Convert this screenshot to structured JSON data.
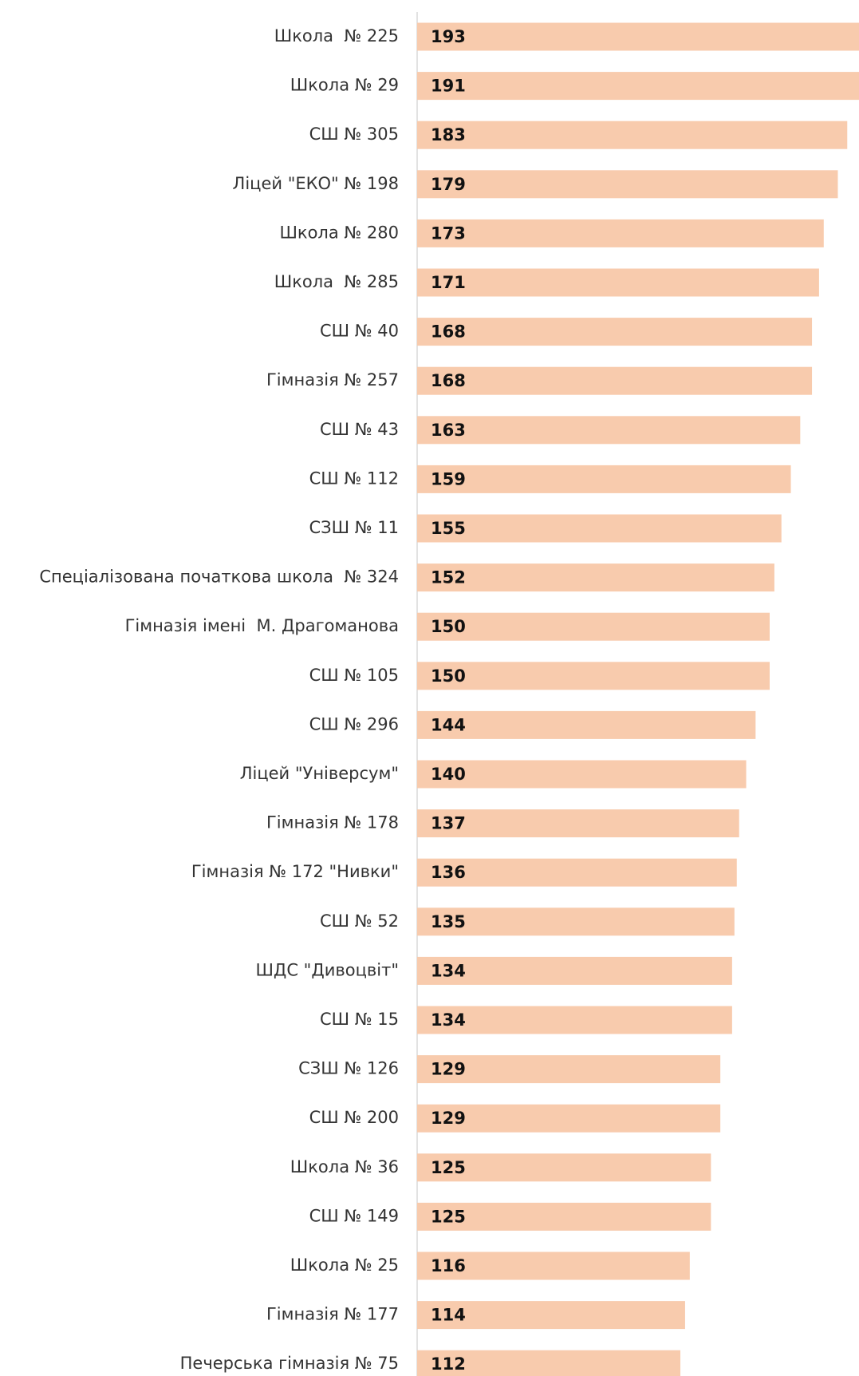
{
  "chart_data": {
    "type": "bar",
    "orientation": "horizontal",
    "color": "#f8cbad",
    "categories": [
      "Школа  № 225",
      "Школа № 29",
      "СШ № 305",
      "Ліцей \"ЕКО\" № 198",
      "Школа № 280",
      "Школа  № 285",
      "СШ № 40",
      "Гімназія № 257",
      "СШ № 43",
      "СШ № 112",
      "СЗШ № 11",
      "Спеціалізована початкова школа  № 324",
      "Гімназія імені  М. Драгоманова",
      "СШ № 105",
      "СШ № 296",
      "Ліцей \"Універсум\"",
      "Гімназія № 178",
      "Гімназія № 172 \"Нивки\"",
      "СШ № 52",
      "ШДС \"Дивоцвіт\"",
      "СШ № 15",
      "СЗШ № 126",
      "СШ № 200",
      "Школа № 36",
      "СШ № 149",
      "Школа № 25",
      "Гімназія № 177",
      "Печерська гімназія № 75"
    ],
    "values": [
      193,
      191,
      183,
      179,
      173,
      171,
      168,
      168,
      163,
      159,
      155,
      152,
      150,
      150,
      144,
      140,
      137,
      136,
      135,
      134,
      134,
      129,
      129,
      125,
      125,
      116,
      114,
      112
    ],
    "xlim": [
      0,
      188
    ]
  }
}
